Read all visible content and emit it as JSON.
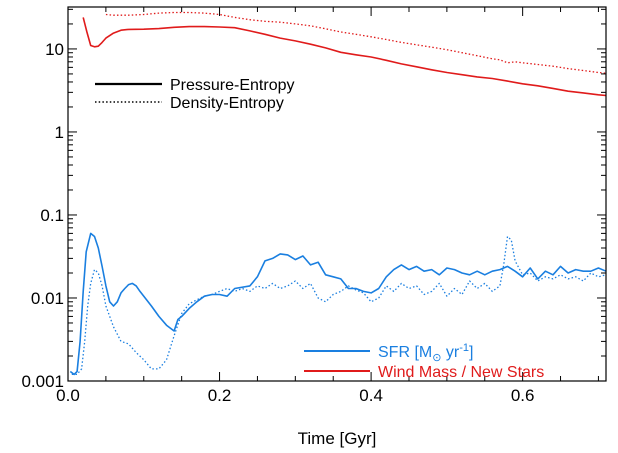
{
  "chart_data": {
    "type": "line",
    "title": "",
    "xlabel": "Time  [Gyr]",
    "ylabel": "",
    "xlim": [
      0.0,
      0.71
    ],
    "ylim": [
      0.001,
      32
    ],
    "yscale": "log",
    "grid": false,
    "x_ticks": [
      {
        "value": 0.0,
        "label": "0.0"
      },
      {
        "value": 0.2,
        "label": "0.2"
      },
      {
        "value": 0.4,
        "label": "0.4"
      },
      {
        "value": 0.6,
        "label": "0.6"
      }
    ],
    "y_ticks": [
      {
        "value": 0.001,
        "label": "0.001"
      },
      {
        "value": 0.01,
        "label": "0.01"
      },
      {
        "value": 0.1,
        "label": "0.1"
      },
      {
        "value": 1,
        "label": "1"
      },
      {
        "value": 10,
        "label": "10"
      }
    ],
    "legend_style": {
      "placement": "upper-left",
      "entries": [
        {
          "label": "Pressure-Entropy",
          "color": "#000000",
          "dash": "solid"
        },
        {
          "label": "Density-Entropy",
          "color": "#000000",
          "dash": "dotted"
        }
      ]
    },
    "legend_quantity": {
      "placement": "lower-right",
      "entries": [
        {
          "label_main": "SFR  [M",
          "label_sub": "⊙",
          "label_unit": " yr",
          "label_sup": "-1",
          "label_end": "]",
          "color": "#1a7fe0"
        },
        {
          "label_main": "Wind Mass / New Stars",
          "color": "#e01b1b"
        }
      ]
    },
    "series": [
      {
        "quantity": "wind",
        "style": "solid",
        "color": "#e01b1b",
        "points": [
          [
            0.02,
            24
          ],
          [
            0.025,
            16
          ],
          [
            0.03,
            11
          ],
          [
            0.035,
            10.6
          ],
          [
            0.04,
            10.8
          ],
          [
            0.045,
            12
          ],
          [
            0.05,
            13.5
          ],
          [
            0.06,
            15.5
          ],
          [
            0.07,
            16.8
          ],
          [
            0.08,
            17.2
          ],
          [
            0.1,
            17.3
          ],
          [
            0.12,
            17.6
          ],
          [
            0.14,
            18.2
          ],
          [
            0.16,
            18.6
          ],
          [
            0.18,
            18.6
          ],
          [
            0.2,
            18.4
          ],
          [
            0.22,
            18
          ],
          [
            0.24,
            16.5
          ],
          [
            0.26,
            15
          ],
          [
            0.28,
            13.5
          ],
          [
            0.3,
            12.5
          ],
          [
            0.32,
            11.4
          ],
          [
            0.34,
            10.3
          ],
          [
            0.36,
            9.1
          ],
          [
            0.38,
            8.5
          ],
          [
            0.4,
            8.0
          ],
          [
            0.42,
            7.3
          ],
          [
            0.44,
            6.6
          ],
          [
            0.46,
            6.1
          ],
          [
            0.48,
            5.6
          ],
          [
            0.5,
            5.2
          ],
          [
            0.52,
            4.9
          ],
          [
            0.54,
            4.6
          ],
          [
            0.56,
            4.4
          ],
          [
            0.58,
            4.1
          ],
          [
            0.6,
            3.8
          ],
          [
            0.62,
            3.6
          ],
          [
            0.64,
            3.35
          ],
          [
            0.66,
            3.1
          ],
          [
            0.68,
            2.95
          ],
          [
            0.7,
            2.8
          ],
          [
            0.71,
            2.75
          ]
        ]
      },
      {
        "quantity": "wind",
        "style": "dotted",
        "color": "#e01b1b",
        "points": [
          [
            0.05,
            26
          ],
          [
            0.06,
            25.5
          ],
          [
            0.08,
            25.5
          ],
          [
            0.1,
            26
          ],
          [
            0.12,
            27
          ],
          [
            0.14,
            27.5
          ],
          [
            0.16,
            27.5
          ],
          [
            0.18,
            27
          ],
          [
            0.2,
            26
          ],
          [
            0.22,
            24
          ],
          [
            0.24,
            22.5
          ],
          [
            0.26,
            21.5
          ],
          [
            0.28,
            21
          ],
          [
            0.3,
            20
          ],
          [
            0.32,
            19
          ],
          [
            0.34,
            17.5
          ],
          [
            0.36,
            16
          ],
          [
            0.38,
            15
          ],
          [
            0.4,
            14
          ],
          [
            0.42,
            13
          ],
          [
            0.44,
            12
          ],
          [
            0.46,
            11.2
          ],
          [
            0.48,
            10.5
          ],
          [
            0.5,
            9.8
          ],
          [
            0.52,
            9
          ],
          [
            0.54,
            8.3
          ],
          [
            0.56,
            7.6
          ],
          [
            0.57,
            7.4
          ],
          [
            0.58,
            6.8
          ],
          [
            0.59,
            7.0
          ],
          [
            0.6,
            6.8
          ],
          [
            0.62,
            6.5
          ],
          [
            0.64,
            6.2
          ],
          [
            0.66,
            5.8
          ],
          [
            0.68,
            5.5
          ],
          [
            0.7,
            5.2
          ],
          [
            0.71,
            5.1
          ]
        ]
      },
      {
        "quantity": "sfr",
        "style": "solid",
        "color": "#1a7fe0",
        "points": [
          [
            0.003,
            0.0013
          ],
          [
            0.008,
            0.0012
          ],
          [
            0.012,
            0.0013
          ],
          [
            0.016,
            0.003
          ],
          [
            0.02,
            0.012
          ],
          [
            0.024,
            0.036
          ],
          [
            0.03,
            0.06
          ],
          [
            0.035,
            0.055
          ],
          [
            0.04,
            0.04
          ],
          [
            0.045,
            0.024
          ],
          [
            0.05,
            0.014
          ],
          [
            0.055,
            0.009
          ],
          [
            0.06,
            0.008
          ],
          [
            0.065,
            0.009
          ],
          [
            0.07,
            0.0115
          ],
          [
            0.075,
            0.013
          ],
          [
            0.08,
            0.0145
          ],
          [
            0.085,
            0.015
          ],
          [
            0.09,
            0.014
          ],
          [
            0.095,
            0.012
          ],
          [
            0.1,
            0.0105
          ],
          [
            0.11,
            0.008
          ],
          [
            0.12,
            0.006
          ],
          [
            0.13,
            0.0047
          ],
          [
            0.14,
            0.004
          ],
          [
            0.145,
            0.0055
          ],
          [
            0.15,
            0.006
          ],
          [
            0.16,
            0.0075
          ],
          [
            0.17,
            0.009
          ],
          [
            0.18,
            0.0105
          ],
          [
            0.19,
            0.011
          ],
          [
            0.2,
            0.011
          ],
          [
            0.21,
            0.0105
          ],
          [
            0.22,
            0.013
          ],
          [
            0.24,
            0.014
          ],
          [
            0.25,
            0.018
          ],
          [
            0.26,
            0.028
          ],
          [
            0.27,
            0.03
          ],
          [
            0.28,
            0.034
          ],
          [
            0.29,
            0.033
          ],
          [
            0.3,
            0.029
          ],
          [
            0.31,
            0.032
          ],
          [
            0.32,
            0.025
          ],
          [
            0.33,
            0.027
          ],
          [
            0.34,
            0.019
          ],
          [
            0.35,
            0.018
          ],
          [
            0.36,
            0.017
          ],
          [
            0.37,
            0.013
          ],
          [
            0.38,
            0.013
          ],
          [
            0.39,
            0.012
          ],
          [
            0.4,
            0.0115
          ],
          [
            0.41,
            0.013
          ],
          [
            0.42,
            0.018
          ],
          [
            0.43,
            0.022
          ],
          [
            0.44,
            0.025
          ],
          [
            0.45,
            0.022
          ],
          [
            0.46,
            0.024
          ],
          [
            0.47,
            0.021
          ],
          [
            0.48,
            0.022
          ],
          [
            0.49,
            0.019
          ],
          [
            0.5,
            0.023
          ],
          [
            0.51,
            0.022
          ],
          [
            0.52,
            0.02
          ],
          [
            0.53,
            0.019
          ],
          [
            0.54,
            0.021
          ],
          [
            0.55,
            0.019
          ],
          [
            0.56,
            0.021
          ],
          [
            0.57,
            0.022
          ],
          [
            0.58,
            0.024
          ],
          [
            0.59,
            0.021
          ],
          [
            0.6,
            0.018
          ],
          [
            0.61,
            0.023
          ],
          [
            0.62,
            0.017
          ],
          [
            0.63,
            0.021
          ],
          [
            0.64,
            0.019
          ],
          [
            0.65,
            0.024
          ],
          [
            0.66,
            0.02
          ],
          [
            0.67,
            0.022
          ],
          [
            0.68,
            0.021
          ],
          [
            0.69,
            0.021
          ],
          [
            0.7,
            0.023
          ],
          [
            0.71,
            0.021
          ]
        ]
      },
      {
        "quantity": "sfr",
        "style": "dotted",
        "color": "#1a7fe0",
        "points": [
          [
            0.005,
            0.0012
          ],
          [
            0.012,
            0.0012
          ],
          [
            0.018,
            0.0014
          ],
          [
            0.022,
            0.003
          ],
          [
            0.026,
            0.008
          ],
          [
            0.03,
            0.015
          ],
          [
            0.035,
            0.022
          ],
          [
            0.04,
            0.02
          ],
          [
            0.045,
            0.014
          ],
          [
            0.05,
            0.008
          ],
          [
            0.06,
            0.0045
          ],
          [
            0.07,
            0.003
          ],
          [
            0.08,
            0.0028
          ],
          [
            0.09,
            0.0022
          ],
          [
            0.1,
            0.0018
          ],
          [
            0.11,
            0.0014
          ],
          [
            0.12,
            0.0014
          ],
          [
            0.13,
            0.0018
          ],
          [
            0.14,
            0.0035
          ],
          [
            0.15,
            0.0065
          ],
          [
            0.16,
            0.0085
          ],
          [
            0.17,
            0.0095
          ],
          [
            0.18,
            0.0105
          ],
          [
            0.19,
            0.011
          ],
          [
            0.2,
            0.012
          ],
          [
            0.21,
            0.013
          ],
          [
            0.22,
            0.012
          ],
          [
            0.23,
            0.013
          ],
          [
            0.24,
            0.012
          ],
          [
            0.25,
            0.014
          ],
          [
            0.26,
            0.013
          ],
          [
            0.27,
            0.015
          ],
          [
            0.28,
            0.013
          ],
          [
            0.29,
            0.014
          ],
          [
            0.3,
            0.016
          ],
          [
            0.31,
            0.013
          ],
          [
            0.32,
            0.015
          ],
          [
            0.33,
            0.01
          ],
          [
            0.34,
            0.009
          ],
          [
            0.35,
            0.011
          ],
          [
            0.36,
            0.012
          ],
          [
            0.37,
            0.014
          ],
          [
            0.38,
            0.0125
          ],
          [
            0.39,
            0.0115
          ],
          [
            0.4,
            0.009
          ],
          [
            0.41,
            0.01
          ],
          [
            0.42,
            0.014
          ],
          [
            0.43,
            0.012
          ],
          [
            0.44,
            0.015
          ],
          [
            0.45,
            0.013
          ],
          [
            0.46,
            0.014
          ],
          [
            0.47,
            0.011
          ],
          [
            0.48,
            0.012
          ],
          [
            0.49,
            0.015
          ],
          [
            0.5,
            0.0105
          ],
          [
            0.51,
            0.013
          ],
          [
            0.52,
            0.011
          ],
          [
            0.53,
            0.016
          ],
          [
            0.54,
            0.013
          ],
          [
            0.55,
            0.015
          ],
          [
            0.56,
            0.012
          ],
          [
            0.57,
            0.014
          ],
          [
            0.575,
            0.025
          ],
          [
            0.58,
            0.055
          ],
          [
            0.585,
            0.05
          ],
          [
            0.59,
            0.028
          ],
          [
            0.6,
            0.019
          ],
          [
            0.61,
            0.02
          ],
          [
            0.62,
            0.016
          ],
          [
            0.63,
            0.018
          ],
          [
            0.64,
            0.017
          ],
          [
            0.65,
            0.019
          ],
          [
            0.66,
            0.017
          ],
          [
            0.67,
            0.018
          ],
          [
            0.68,
            0.016
          ],
          [
            0.69,
            0.02
          ],
          [
            0.7,
            0.018
          ],
          [
            0.71,
            0.019
          ]
        ]
      }
    ]
  }
}
